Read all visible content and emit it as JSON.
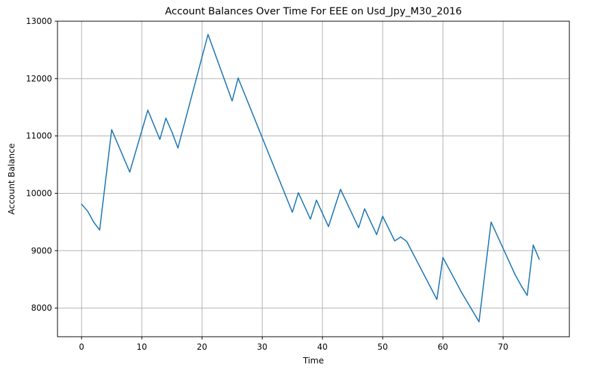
{
  "chart_data": {
    "type": "line",
    "title": "Account Balances Over Time For EEE on Usd_Jpy_M30_2016",
    "xlabel": "Time",
    "ylabel": "Account Balance",
    "xlim": [
      -4,
      81
    ],
    "ylim": [
      7500,
      13000
    ],
    "xticks": [
      0,
      10,
      20,
      30,
      40,
      50,
      60,
      70
    ],
    "yticks": [
      8000,
      9000,
      10000,
      11000,
      12000,
      13000
    ],
    "grid": true,
    "line_color": "#1f77b4",
    "series": [
      {
        "x": [
          0,
          1,
          2,
          3,
          5,
          8,
          11,
          13,
          14,
          15,
          16,
          21,
          25,
          26,
          35,
          36,
          38,
          39,
          41,
          43,
          46,
          47,
          49,
          50,
          52,
          53,
          54,
          59,
          60,
          62,
          63,
          66,
          68,
          72,
          73,
          74,
          75,
          76
        ],
        "y": [
          9810,
          9690,
          9500,
          9360,
          11110,
          10370,
          11450,
          10940,
          11310,
          11070,
          10790,
          12770,
          11610,
          12010,
          9670,
          10010,
          9550,
          9880,
          9420,
          10070,
          9400,
          9730,
          9280,
          9600,
          9170,
          9240,
          9160,
          8150,
          8880,
          8490,
          8290,
          7760,
          9500,
          8580,
          8390,
          8220,
          9100,
          8850
        ]
      }
    ]
  }
}
